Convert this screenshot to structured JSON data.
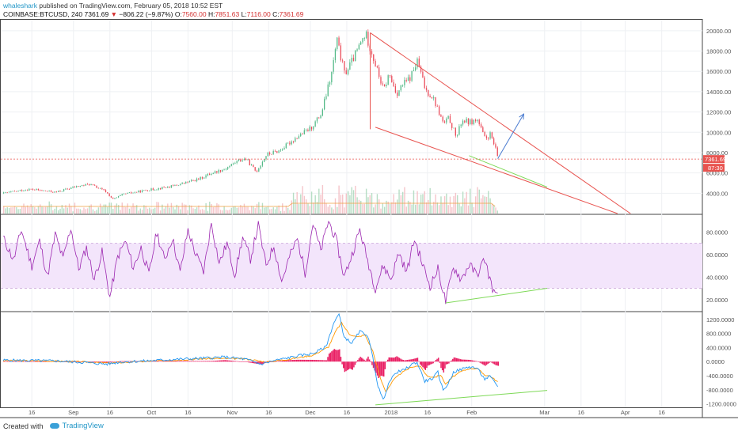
{
  "header": {
    "user": "whaleshark",
    "published": "published on TradingView.com, February 05, 2018 10:52 EST",
    "symbol": "COINBASE:BTCUSD, 240",
    "last": "7361.69",
    "change": "−806.22 (−9.87%)",
    "o_label": "O:",
    "o_value": "7560.00",
    "h_label": "H:",
    "h_value": "7851.63",
    "l_label": "L:",
    "l_value": "7116.00",
    "c_label": "C:",
    "c_value": "7361.69"
  },
  "footer": {
    "created": "Created with",
    "brand": "TradingView"
  },
  "colors": {
    "bull": "#53b987",
    "bear": "#eb4d5c",
    "trend_red": "#e8534f",
    "trend_green": "#7ed957",
    "arrow": "#4a7bd0",
    "rsi": "#9c27b0",
    "rsi_band": "#f3e5fb",
    "macd": "#2196f3",
    "signal": "#ff9800",
    "hist": "#e91e63",
    "price_tag": "#e8534f"
  },
  "chart_data": [
    {
      "type": "candlestick",
      "title": "",
      "symbol": "COINBASE:BTCUSD",
      "interval": "240",
      "price_ticks": [
        "20000.00",
        "18000.00",
        "16000.00",
        "14000.00",
        "12000.00",
        "10000.00",
        "8000.00",
        "6000.00",
        "4000.00"
      ],
      "ylim": [
        2000,
        21000
      ],
      "last_price": 7361.69,
      "last_price_label": "7361.69",
      "countdown_label": "87:30",
      "x_tick_labels": [
        "16",
        "Sep",
        "16",
        "Oct",
        "16",
        "Nov",
        "16",
        "Dec",
        "16",
        "2018",
        "16",
        "Feb",
        "Mar",
        "16",
        "Apr",
        "16"
      ],
      "x_tick_days": [
        -214,
        -198,
        -184,
        -168,
        -154,
        -137,
        -123,
        -107,
        -93,
        -76,
        -62,
        -45,
        -17,
        -3,
        14,
        28
      ],
      "x_range_days": [
        -225,
        43
      ],
      "price_path": [
        [
          -225,
          4000
        ],
        [
          -215,
          4400
        ],
        [
          -205,
          4100
        ],
        [
          -198,
          4600
        ],
        [
          -192,
          4900
        ],
        [
          -186,
          4200
        ],
        [
          -183,
          3400
        ],
        [
          -179,
          3900
        ],
        [
          -170,
          4300
        ],
        [
          -160,
          4700
        ],
        [
          -150,
          5400
        ],
        [
          -145,
          6000
        ],
        [
          -140,
          6400
        ],
        [
          -135,
          7200
        ],
        [
          -132,
          7400
        ],
        [
          -128,
          6100
        ],
        [
          -124,
          7800
        ],
        [
          -119,
          8200
        ],
        [
          -112,
          9600
        ],
        [
          -107,
          10400
        ],
        [
          -103,
          11800
        ],
        [
          -99,
          15800
        ],
        [
          -97,
          19100
        ],
        [
          -94,
          15700
        ],
        [
          -90,
          17600
        ],
        [
          -88,
          18700
        ],
        [
          -86,
          19700
        ],
        [
          -84,
          18200
        ],
        [
          -82,
          16500
        ],
        [
          -79,
          14100
        ],
        [
          -77,
          15700
        ],
        [
          -74,
          13800
        ],
        [
          -72,
          14600
        ],
        [
          -69,
          15300
        ],
        [
          -66,
          17000
        ],
        [
          -63,
          14200
        ],
        [
          -60,
          13400
        ],
        [
          -56,
          10800
        ],
        [
          -54,
          11400
        ],
        [
          -51,
          9500
        ],
        [
          -49,
          11200
        ],
        [
          -46,
          11000
        ],
        [
          -43,
          11200
        ],
        [
          -40,
          9300
        ],
        [
          -38,
          9800
        ],
        [
          -36,
          8300
        ],
        [
          -35,
          7362
        ]
      ],
      "lines": [
        {
          "name": "",
          "color": "trend_red",
          "from": [
            -84,
            19800
          ],
          "to": [
            16,
            2000
          ]
        },
        {
          "name": "",
          "color": "trend_red",
          "from": [
            -82,
            10500
          ],
          "to": [
            11,
            2000
          ]
        },
        {
          "name": "",
          "color": "trend_green",
          "from": [
            -46,
            7700
          ],
          "to": [
            -16,
            4600
          ]
        },
        {
          "name": "",
          "color": "arrow",
          "from": [
            -35,
            7400
          ],
          "to": [
            -25,
            11800
          ],
          "arrow": true
        },
        {
          "name": "",
          "color": "trend_red",
          "from": [
            -84,
            19800
          ],
          "to": [
            -84,
            10300
          ]
        }
      ]
    },
    {
      "type": "line",
      "title": "",
      "series": [
        {
          "name": "",
          "values_desc": "RSI oscillator"
        }
      ],
      "y_ticks": [
        "80.0000",
        "60.0000",
        "40.0000",
        "20.0000"
      ],
      "ylim": [
        10,
        95
      ],
      "band": [
        30,
        70
      ],
      "rsi_path": [
        [
          -225,
          75
        ],
        [
          -221,
          55
        ],
        [
          -218,
          82
        ],
        [
          -214,
          50
        ],
        [
          -211,
          72
        ],
        [
          -208,
          40
        ],
        [
          -205,
          78
        ],
        [
          -202,
          56
        ],
        [
          -199,
          84
        ],
        [
          -196,
          47
        ],
        [
          -193,
          66
        ],
        [
          -190,
          38
        ],
        [
          -187,
          62
        ],
        [
          -184,
          22
        ],
        [
          -181,
          58
        ],
        [
          -178,
          72
        ],
        [
          -175,
          48
        ],
        [
          -172,
          66
        ],
        [
          -169,
          42
        ],
        [
          -166,
          80
        ],
        [
          -163,
          55
        ],
        [
          -160,
          75
        ],
        [
          -157,
          44
        ],
        [
          -154,
          82
        ],
        [
          -151,
          60
        ],
        [
          -148,
          45
        ],
        [
          -145,
          88
        ],
        [
          -142,
          52
        ],
        [
          -139,
          70
        ],
        [
          -136,
          42
        ],
        [
          -133,
          75
        ],
        [
          -130,
          56
        ],
        [
          -127,
          86
        ],
        [
          -124,
          50
        ],
        [
          -121,
          68
        ],
        [
          -118,
          36
        ],
        [
          -115,
          58
        ],
        [
          -112,
          74
        ],
        [
          -109,
          44
        ],
        [
          -106,
          88
        ],
        [
          -103,
          63
        ],
        [
          -100,
          90
        ],
        [
          -97,
          72
        ],
        [
          -94,
          40
        ],
        [
          -91,
          60
        ],
        [
          -88,
          82
        ],
        [
          -85,
          55
        ],
        [
          -82,
          30
        ],
        [
          -79,
          50
        ],
        [
          -76,
          38
        ],
        [
          -73,
          62
        ],
        [
          -70,
          44
        ],
        [
          -67,
          74
        ],
        [
          -64,
          52
        ],
        [
          -61,
          32
        ],
        [
          -58,
          47
        ],
        [
          -55,
          18
        ],
        [
          -52,
          49
        ],
        [
          -49,
          38
        ],
        [
          -46,
          51
        ],
        [
          -43,
          42
        ],
        [
          -40,
          56
        ],
        [
          -38,
          38
        ],
        [
          -36,
          23
        ],
        [
          -35,
          30
        ]
      ],
      "lines": [
        {
          "name": "",
          "color": "trend_green",
          "from": [
            -55,
            17
          ],
          "to": [
            -16,
            30
          ]
        }
      ]
    },
    {
      "type": "line",
      "title": "",
      "series": [
        {
          "name": "",
          "values_desc": "MACD"
        },
        {
          "name": "",
          "values_desc": "Signal"
        },
        {
          "name": "",
          "values_desc": "Histogram"
        }
      ],
      "y_ticks": [
        "1200.0000",
        "800.0000",
        "400.0000",
        "0.0000",
        "-400.0000",
        "-800.0000",
        "-1200.0000"
      ],
      "ylim": [
        -1300,
        1400
      ],
      "macd_path": [
        [
          -225,
          40
        ],
        [
          -215,
          30
        ],
        [
          -205,
          20
        ],
        [
          -195,
          -20
        ],
        [
          -185,
          -70
        ],
        [
          -180,
          -10
        ],
        [
          -170,
          20
        ],
        [
          -160,
          60
        ],
        [
          -150,
          90
        ],
        [
          -140,
          130
        ],
        [
          -132,
          70
        ],
        [
          -126,
          -70
        ],
        [
          -120,
          40
        ],
        [
          -112,
          160
        ],
        [
          -106,
          230
        ],
        [
          -101,
          420
        ],
        [
          -98,
          1100
        ],
        [
          -96,
          1350
        ],
        [
          -94,
          700
        ],
        [
          -91,
          520
        ],
        [
          -88,
          860
        ],
        [
          -85,
          750
        ],
        [
          -83,
          120
        ],
        [
          -81,
          -700
        ],
        [
          -79,
          -1100
        ],
        [
          -77,
          -620
        ],
        [
          -74,
          -300
        ],
        [
          -71,
          -240
        ],
        [
          -68,
          -80
        ],
        [
          -66,
          -20
        ],
        [
          -63,
          -560
        ],
        [
          -60,
          -480
        ],
        [
          -58,
          -300
        ],
        [
          -56,
          -820
        ],
        [
          -54,
          -620
        ],
        [
          -52,
          -300
        ],
        [
          -49,
          -220
        ],
        [
          -46,
          -150
        ],
        [
          -43,
          -180
        ],
        [
          -40,
          -500
        ],
        [
          -38,
          -420
        ],
        [
          -36,
          -620
        ],
        [
          -35,
          -700
        ]
      ],
      "signal_path": [
        [
          -225,
          30
        ],
        [
          -210,
          20
        ],
        [
          -195,
          -5
        ],
        [
          -185,
          -40
        ],
        [
          -175,
          -10
        ],
        [
          -160,
          40
        ],
        [
          -145,
          90
        ],
        [
          -132,
          80
        ],
        [
          -124,
          -10
        ],
        [
          -115,
          70
        ],
        [
          -106,
          180
        ],
        [
          -100,
          420
        ],
        [
          -97,
          900
        ],
        [
          -95,
          1100
        ],
        [
          -92,
          780
        ],
        [
          -89,
          700
        ],
        [
          -86,
          760
        ],
        [
          -83,
          300
        ],
        [
          -80,
          -500
        ],
        [
          -78,
          -850
        ],
        [
          -75,
          -520
        ],
        [
          -72,
          -320
        ],
        [
          -68,
          -150
        ],
        [
          -65,
          -120
        ],
        [
          -62,
          -420
        ],
        [
          -59,
          -440
        ],
        [
          -57,
          -380
        ],
        [
          -55,
          -640
        ],
        [
          -52,
          -420
        ],
        [
          -49,
          -280
        ],
        [
          -46,
          -200
        ],
        [
          -43,
          -190
        ],
        [
          -40,
          -380
        ],
        [
          -38,
          -410
        ],
        [
          -36,
          -520
        ],
        [
          -35,
          -580
        ]
      ],
      "lines": [
        {
          "name": "",
          "color": "trend_green",
          "from": [
            -82,
            -1230
          ],
          "to": [
            -16,
            -820
          ]
        }
      ]
    }
  ]
}
